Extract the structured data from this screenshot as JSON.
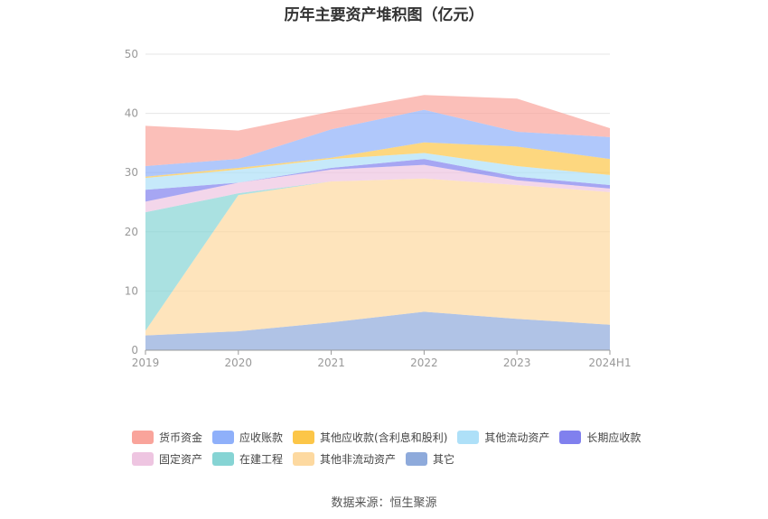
{
  "chart_data": {
    "type": "area",
    "stacked": true,
    "title": "历年主要资产堆积图（亿元）",
    "categories": [
      "2019",
      "2020",
      "2021",
      "2022",
      "2023",
      "2024H1"
    ],
    "ylim": [
      0,
      50
    ],
    "yticks": [
      0,
      10,
      20,
      30,
      40,
      50
    ],
    "grid": true,
    "legend_position": "bottom",
    "series": [
      {
        "name": "其它",
        "color": "#8eaadb",
        "values": [
          2.5,
          3.2,
          4.7,
          6.5,
          5.3,
          4.3
        ]
      },
      {
        "name": "其他非流动资产",
        "color": "#fdd9a0",
        "values": [
          0.8,
          23.0,
          23.8,
          22.5,
          22.6,
          22.4
        ]
      },
      {
        "name": "在建工程",
        "color": "#86d4d4",
        "values": [
          20.0,
          0.3,
          0,
          0,
          0,
          0
        ]
      },
      {
        "name": "固定资产",
        "color": "#eec5e1",
        "values": [
          1.8,
          1.8,
          2.0,
          2.3,
          0.8,
          0.6
        ]
      },
      {
        "name": "长期应收款",
        "color": "#8080ee",
        "values": [
          2.0,
          0,
          0.3,
          1.0,
          0.6,
          0.6
        ]
      },
      {
        "name": "其他流动资产",
        "color": "#aee0f8",
        "values": [
          2.0,
          2.2,
          1.5,
          1.0,
          1.8,
          1.7
        ]
      },
      {
        "name": "其他应收款(含利息和股利)",
        "color": "#fcc648",
        "values": [
          0.2,
          0.3,
          0.2,
          1.8,
          3.3,
          2.7
        ]
      },
      {
        "name": "应收账款",
        "color": "#8fb0fa",
        "values": [
          1.8,
          1.5,
          4.8,
          5.5,
          2.5,
          3.7
        ]
      },
      {
        "name": "货币资金",
        "color": "#f9a49b",
        "values": [
          6.8,
          4.8,
          3.0,
          2.5,
          5.6,
          1.5
        ]
      }
    ]
  },
  "legend_rows": [
    [
      {
        "name": "货币资金",
        "color": "#f9a49b"
      },
      {
        "name": "应收账款",
        "color": "#8fb0fa"
      },
      {
        "name": "其他应收款(含利息和股利)",
        "color": "#fcc648"
      },
      {
        "name": "其他流动资产",
        "color": "#aee0f8"
      },
      {
        "name": "长期应收款",
        "color": "#8080ee"
      }
    ],
    [
      {
        "name": "固定资产",
        "color": "#eec5e1"
      },
      {
        "name": "在建工程",
        "color": "#86d4d4"
      },
      {
        "name": "其他非流动资产",
        "color": "#fdd9a0"
      },
      {
        "name": "其它",
        "color": "#8eaadb"
      }
    ]
  ],
  "source": "数据来源：恒生聚源"
}
